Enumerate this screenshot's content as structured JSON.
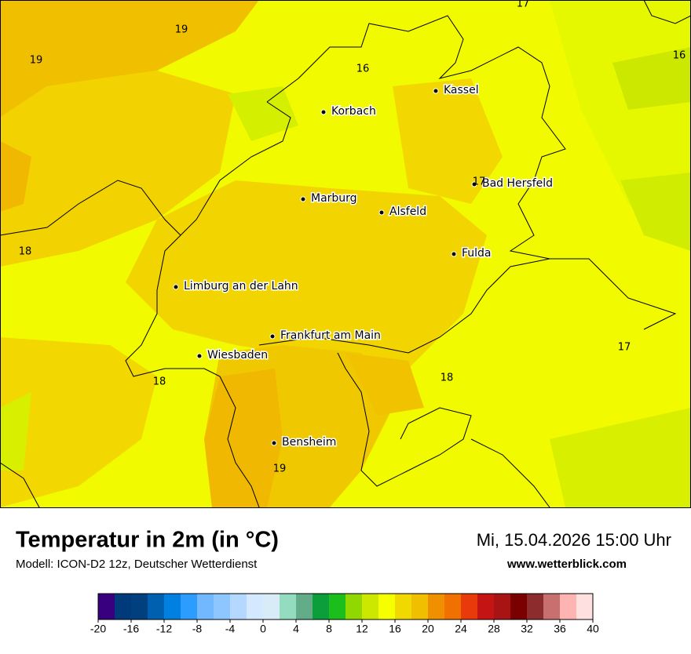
{
  "map": {
    "cities": [
      "Kassel",
      "Korbach",
      "Marburg",
      "Alsfeld",
      "Bad Hersfeld",
      "Fulda",
      "Limburg an der Lahn",
      "Frankfurt am Main",
      "Wiesbaden",
      "Bensheim"
    ],
    "contour_labels": [
      19,
      19,
      16,
      17,
      16,
      18,
      17,
      17,
      18,
      18,
      19
    ]
  },
  "footer": {
    "title": "Temperatur in 2m (in °C)",
    "subtitle": "Modell: ICON-D2 12z, Deutscher Wetterdienst",
    "datetime": "Mi, 15.04.2026 15:00 Uhr",
    "website": "www.wetterblick.com"
  },
  "legend": {
    "range": [
      -20,
      40
    ],
    "ticks": [
      -20,
      -16,
      -12,
      -8,
      -4,
      0,
      4,
      8,
      12,
      16,
      20,
      24,
      28,
      32,
      36,
      40
    ],
    "colors": [
      "#38007f",
      "#003a7a",
      "#00407f",
      "#0060b0",
      "#0080e0",
      "#2c9cff",
      "#72b8ff",
      "#8ec6ff",
      "#b4d8ff",
      "#d4e8ff",
      "#d8ecf8",
      "#94dcc0",
      "#62ac8a",
      "#0c9e3a",
      "#1cbe1c",
      "#90d800",
      "#cce800",
      "#f5ff00",
      "#f0d800",
      "#f0c000",
      "#f09000",
      "#f07000",
      "#e83a0a",
      "#c41414",
      "#a81414",
      "#7a0000",
      "#8c2c2c",
      "#c87070",
      "#ffb4b4",
      "#ffe0e0"
    ]
  }
}
